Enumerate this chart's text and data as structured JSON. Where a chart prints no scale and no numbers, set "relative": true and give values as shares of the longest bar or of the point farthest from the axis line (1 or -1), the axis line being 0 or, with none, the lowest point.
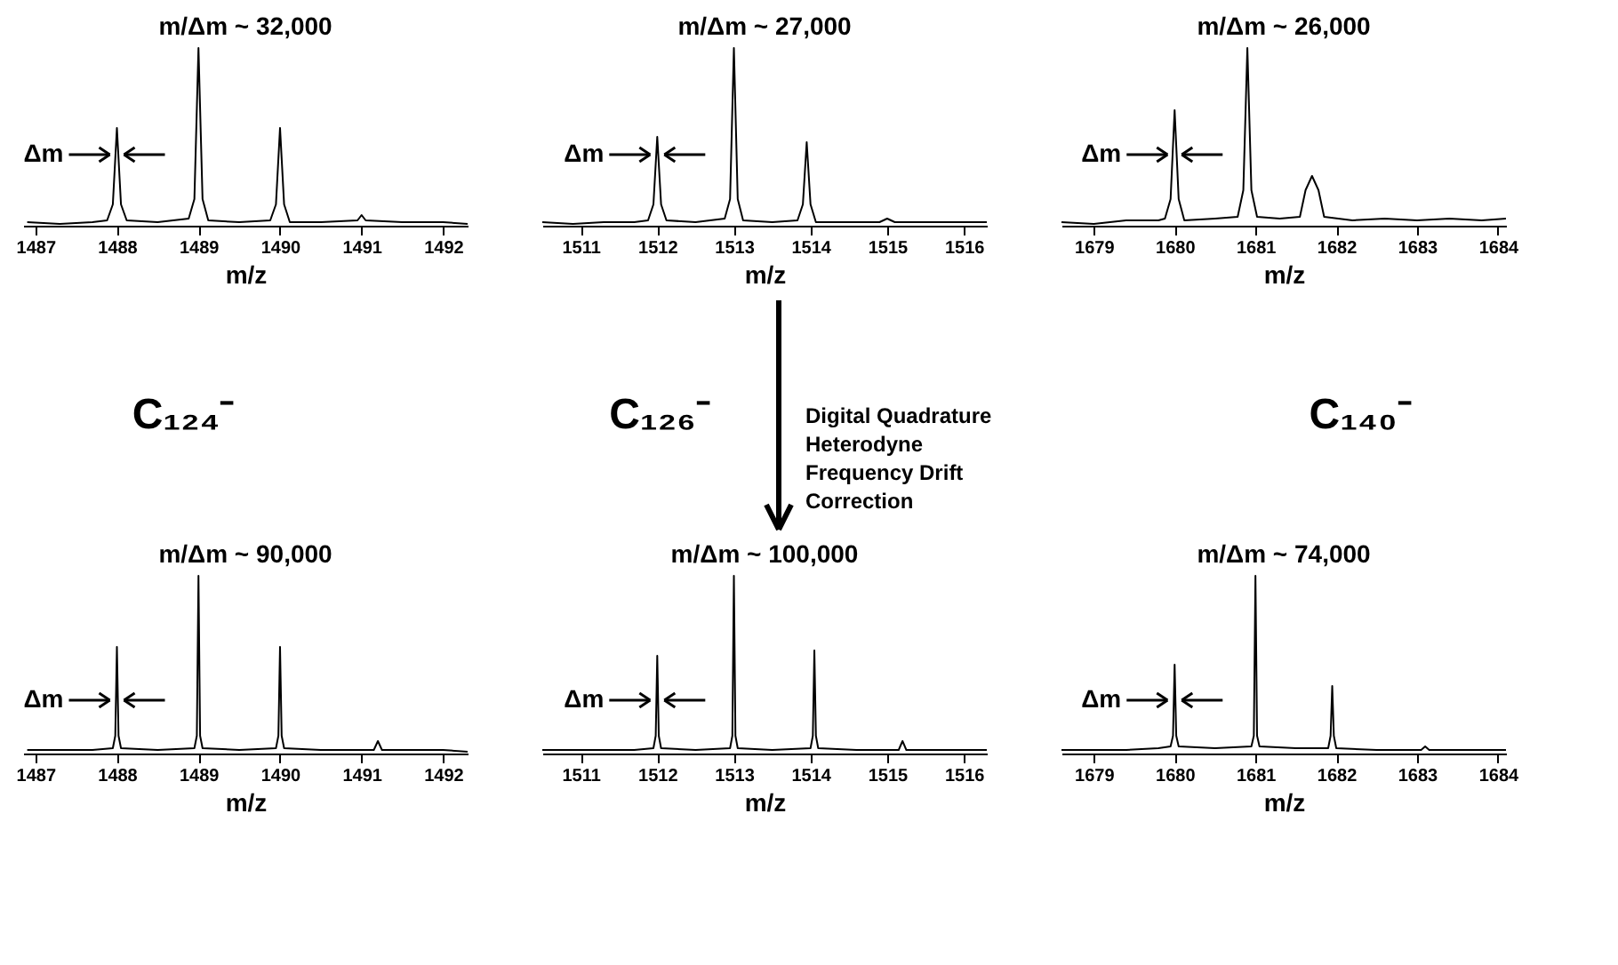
{
  "chart_data": [
    {
      "type": "line",
      "title": "m/Δm ~ 32,000",
      "xlabel": "m/z",
      "relative": true,
      "color": "#000000",
      "grid": false,
      "tick_labels": "x",
      "xlim": [
        1486.85,
        1492.3
      ],
      "xticks": [
        1487,
        1488,
        1489,
        1490,
        1491,
        1492
      ],
      "x": [
        1486.9,
        1487.3,
        1487.7,
        1487.88,
        1487.95,
        1488,
        1488.05,
        1488.12,
        1488.5,
        1488.88,
        1488.95,
        1489,
        1489.05,
        1489.12,
        1489.5,
        1489.88,
        1489.95,
        1490,
        1490.05,
        1490.12,
        1490.5,
        1490.95,
        1491,
        1491.05,
        1491.5,
        1492,
        1492.3
      ],
      "values": [
        0.02,
        0.01,
        0.02,
        0.03,
        0.12,
        0.55,
        0.12,
        0.03,
        0.02,
        0.04,
        0.15,
        1,
        0.15,
        0.03,
        0.02,
        0.03,
        0.12,
        0.55,
        0.12,
        0.02,
        0.02,
        0.03,
        0.06,
        0.03,
        0.02,
        0.02,
        0.01
      ],
      "annotations": [
        {
          "text": "Δm",
          "x": 1488,
          "y": 0.4
        }
      ]
    },
    {
      "type": "line",
      "title": "m/Δm ~ 27,000",
      "xlabel": "m/z",
      "relative": true,
      "color": "#000000",
      "grid": false,
      "tick_labels": "x",
      "xlim": [
        1510.5,
        1516.3
      ],
      "xticks": [
        1511,
        1512,
        1513,
        1514,
        1515,
        1516
      ],
      "x": [
        1510.5,
        1510.9,
        1511.3,
        1511.7,
        1511.88,
        1511.95,
        1512,
        1512.05,
        1512.12,
        1512.5,
        1512.88,
        1512.95,
        1513,
        1513.05,
        1513.12,
        1513.5,
        1513.83,
        1513.9,
        1513.95,
        1514,
        1514.07,
        1514.5,
        1514.9,
        1515,
        1515.1,
        1515.6,
        1516.3
      ],
      "values": [
        0.02,
        0.01,
        0.02,
        0.02,
        0.03,
        0.12,
        0.5,
        0.12,
        0.03,
        0.02,
        0.04,
        0.15,
        1,
        0.15,
        0.03,
        0.02,
        0.03,
        0.12,
        0.47,
        0.12,
        0.02,
        0.02,
        0.02,
        0.04,
        0.02,
        0.02,
        0.02
      ],
      "annotations": [
        {
          "text": "Δm",
          "x": 1512,
          "y": 0.4
        }
      ]
    },
    {
      "type": "line",
      "title": "m/Δm ~ 26,000",
      "xlabel": "m/z",
      "relative": true,
      "color": "#000000",
      "grid": false,
      "tick_labels": "x",
      "xlim": [
        1678.6,
        1684.1
      ],
      "xticks": [
        1679,
        1680,
        1681,
        1682,
        1683,
        1684
      ],
      "x": [
        1678.6,
        1679,
        1679.4,
        1679.8,
        1679.88,
        1679.95,
        1680,
        1680.05,
        1680.12,
        1680.5,
        1680.78,
        1680.85,
        1680.9,
        1680.95,
        1681.02,
        1681.3,
        1681.55,
        1681.62,
        1681.7,
        1681.78,
        1681.85,
        1682.2,
        1682.6,
        1683,
        1683.4,
        1683.8,
        1684.1
      ],
      "values": [
        0.02,
        0.01,
        0.03,
        0.03,
        0.04,
        0.15,
        0.65,
        0.15,
        0.03,
        0.04,
        0.05,
        0.2,
        1,
        0.2,
        0.05,
        0.04,
        0.05,
        0.2,
        0.28,
        0.2,
        0.05,
        0.03,
        0.04,
        0.03,
        0.04,
        0.03,
        0.04
      ],
      "annotations": [
        {
          "text": "Δm",
          "x": 1680,
          "y": 0.4
        }
      ]
    },
    {
      "type": "other",
      "annotations": [
        "C₁₂₄⁻",
        "C₁₂₆⁻",
        "Digital Quadrature\nHeterodyne\nFrequency Drift\nCorrection",
        "C₁₄₀⁻"
      ]
    },
    {
      "type": "line",
      "title": "m/Δm ~ 90,000",
      "xlabel": "m/z",
      "relative": true,
      "color": "#000000",
      "grid": false,
      "tick_labels": "x",
      "xlim": [
        1486.85,
        1492.3
      ],
      "xticks": [
        1487,
        1488,
        1489,
        1490,
        1491,
        1492
      ],
      "x": [
        1486.9,
        1487.3,
        1487.7,
        1487.95,
        1487.98,
        1488,
        1488.02,
        1488.05,
        1488.5,
        1488.95,
        1488.98,
        1489,
        1489.02,
        1489.05,
        1489.5,
        1489.95,
        1489.98,
        1490,
        1490.02,
        1490.05,
        1490.5,
        1491.15,
        1491.2,
        1491.25,
        1491.6,
        1492,
        1492.3
      ],
      "values": [
        0.02,
        0.02,
        0.02,
        0.03,
        0.1,
        0.6,
        0.1,
        0.03,
        0.02,
        0.03,
        0.1,
        1,
        0.1,
        0.03,
        0.02,
        0.03,
        0.1,
        0.6,
        0.1,
        0.03,
        0.02,
        0.02,
        0.07,
        0.02,
        0.02,
        0.02,
        0.01
      ],
      "annotations": [
        {
          "text": "Δm",
          "x": 1488,
          "y": 0.3
        }
      ]
    },
    {
      "type": "line",
      "title": "m/Δm ~ 100,000",
      "xlabel": "m/z",
      "relative": true,
      "color": "#000000",
      "grid": false,
      "tick_labels": "x",
      "xlim": [
        1510.5,
        1516.3
      ],
      "xticks": [
        1511,
        1512,
        1513,
        1514,
        1515,
        1516
      ],
      "x": [
        1510.5,
        1510.9,
        1511.3,
        1511.7,
        1511.95,
        1511.98,
        1512,
        1512.02,
        1512.05,
        1512.5,
        1512.95,
        1512.98,
        1513,
        1513.02,
        1513.05,
        1513.5,
        1514,
        1514.03,
        1514.05,
        1514.07,
        1514.1,
        1514.6,
        1515.15,
        1515.2,
        1515.25,
        1515.7,
        1516.3
      ],
      "values": [
        0.02,
        0.02,
        0.02,
        0.02,
        0.03,
        0.1,
        0.55,
        0.1,
        0.03,
        0.02,
        0.03,
        0.1,
        1,
        0.1,
        0.03,
        0.02,
        0.03,
        0.1,
        0.58,
        0.1,
        0.03,
        0.02,
        0.02,
        0.07,
        0.02,
        0.02,
        0.02
      ],
      "annotations": [
        {
          "text": "Δm",
          "x": 1512,
          "y": 0.3
        }
      ]
    },
    {
      "type": "line",
      "title": "m/Δm ~ 74,000",
      "xlabel": "m/z",
      "relative": true,
      "color": "#000000",
      "grid": false,
      "tick_labels": "x",
      "xlim": [
        1678.6,
        1684.1
      ],
      "xticks": [
        1679,
        1680,
        1681,
        1682,
        1683,
        1684
      ],
      "x": [
        1678.6,
        1679,
        1679.4,
        1679.8,
        1679.95,
        1679.98,
        1680,
        1680.02,
        1680.05,
        1680.5,
        1680.95,
        1680.98,
        1681,
        1681.02,
        1681.05,
        1681.5,
        1681.9,
        1681.93,
        1681.95,
        1681.97,
        1682,
        1682.5,
        1683.05,
        1683.1,
        1683.15,
        1683.6,
        1684.1
      ],
      "values": [
        0.02,
        0.02,
        0.02,
        0.03,
        0.04,
        0.1,
        0.5,
        0.1,
        0.04,
        0.03,
        0.04,
        0.1,
        1,
        0.1,
        0.04,
        0.03,
        0.03,
        0.1,
        0.38,
        0.1,
        0.03,
        0.02,
        0.02,
        0.04,
        0.02,
        0.02,
        0.02
      ],
      "annotations": [
        {
          "text": "Δm",
          "x": 1680,
          "y": 0.3
        }
      ]
    }
  ]
}
